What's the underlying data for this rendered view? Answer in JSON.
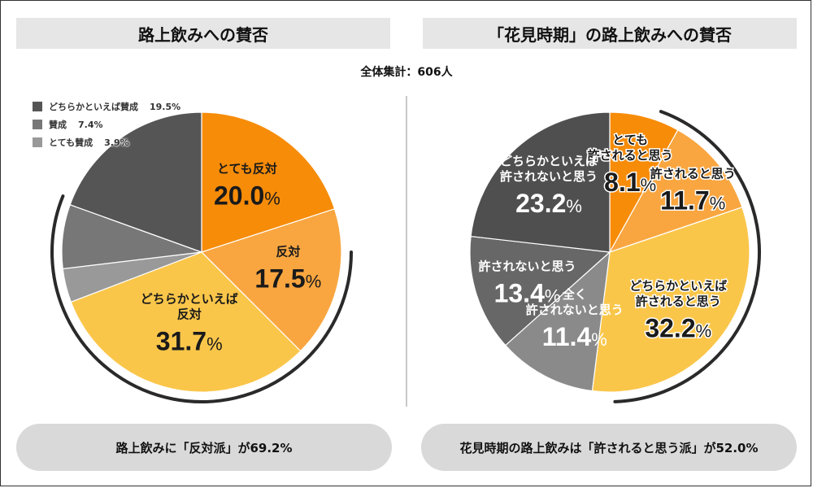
{
  "header": {
    "left_title": "路上飲みへの賛否",
    "right_title": "「花見時期」の路上飲みへの賛否",
    "total": "全体集計：606人"
  },
  "legend": [
    {
      "label": "どちらかといえば賛成",
      "value": "19.5%",
      "color": "#555555"
    },
    {
      "label": "賛成",
      "value": "7.4%",
      "color": "#777777"
    },
    {
      "label": "とても賛成",
      "value": "3.9%",
      "color": "#999999"
    }
  ],
  "summary": {
    "left": "路上飲みに「反対派」が69.2%",
    "right": "花見時期の路上飲みは「許されると思う派」が52.0%"
  },
  "chart_data": [
    {
      "type": "pie",
      "title": "路上飲みへの賛否",
      "total_respondents": 606,
      "slices": [
        {
          "label": "とても反対",
          "label_lines": [
            "とても反対"
          ],
          "value": 20.0,
          "value_label": "20.0",
          "color": "#f78c09"
        },
        {
          "label": "反対",
          "label_lines": [
            "反対"
          ],
          "value": 17.5,
          "value_label": "17.5",
          "color": "#f9a640"
        },
        {
          "label": "どちらかといえば反対",
          "label_lines": [
            "どちらかといえば",
            "反対"
          ],
          "value": 31.7,
          "value_label": "31.7",
          "color": "#fac64a"
        },
        {
          "label": "とても賛成",
          "value": 3.9,
          "color": "#999999"
        },
        {
          "label": "賛成",
          "value": 7.4,
          "color": "#777777"
        },
        {
          "label": "どちらかといえば賛成",
          "value": 19.5,
          "color": "#555555"
        }
      ],
      "highlight_group": "反対派",
      "highlight_total": 69.2
    },
    {
      "type": "pie",
      "title": "「花見時期」の路上飲みへの賛否",
      "total_respondents": 606,
      "slices": [
        {
          "label": "とても許されると思う",
          "label_lines": [
            "とても",
            "許されると思う"
          ],
          "value": 8.1,
          "value_label": "8.1",
          "color": "#f78c09"
        },
        {
          "label": "許されると思う",
          "label_lines": [
            "許されると思う"
          ],
          "value": 11.7,
          "value_label": "11.7",
          "color": "#f9a640"
        },
        {
          "label": "どちらかといえば許されると思う",
          "label_lines": [
            "どちらかといえば",
            "許されると思う"
          ],
          "value": 32.2,
          "value_label": "32.2",
          "color": "#fac64a"
        },
        {
          "label": "全く許されないと思う",
          "label_lines": [
            "全く",
            "許されないと思う"
          ],
          "value": 11.4,
          "value_label": "11.4",
          "color": "#8a8a8a"
        },
        {
          "label": "許されないと思う",
          "label_lines": [
            "許されないと思う"
          ],
          "value": 13.4,
          "value_label": "13.4",
          "color": "#676767"
        },
        {
          "label": "どちらかといえば許されないと思う",
          "label_lines": [
            "どちらかといえば",
            "許されないと思う"
          ],
          "value": 23.2,
          "value_label": "23.2",
          "color": "#4f4f4f"
        }
      ],
      "highlight_group": "許されると思う派",
      "highlight_total": 52.0
    }
  ]
}
